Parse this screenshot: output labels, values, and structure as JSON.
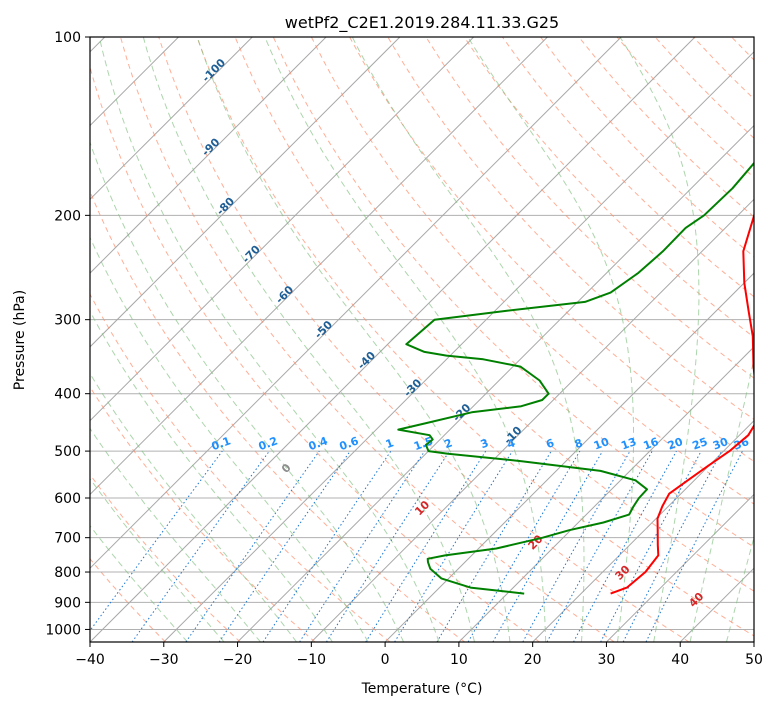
{
  "chart_data": {
    "type": "skew-t",
    "title": "wetPf2_C2E1.2019.284.11.33.G25",
    "xlabel": "Temperature (°C)",
    "ylabel": "Pressure (hPa)",
    "xlim": [
      -40,
      50
    ],
    "ylim": [
      1050,
      100
    ],
    "y_scale": "log",
    "x_ticks": [
      -40,
      -30,
      -20,
      -10,
      0,
      10,
      20,
      30,
      40,
      50
    ],
    "y_ticks": [
      100,
      200,
      300,
      400,
      500,
      600,
      700,
      800,
      900,
      1000
    ],
    "x_tick_labels": [
      "−40",
      "−30",
      "−20",
      "−10",
      "0",
      "10",
      "20",
      "30",
      "40",
      "50"
    ],
    "y_tick_labels": [
      "100",
      "200",
      "300",
      "400",
      "500",
      "600",
      "700",
      "800",
      "900",
      "1000"
    ],
    "grid": true,
    "series": [
      {
        "role": "temperature",
        "color": "#ff0000",
        "points": [
          [
            870,
            24
          ],
          [
            850,
            25.4
          ],
          [
            800,
            25.8
          ],
          [
            750,
            25.3
          ],
          [
            720,
            23.8
          ],
          [
            680,
            21.8
          ],
          [
            650,
            20.2
          ],
          [
            620,
            19.2
          ],
          [
            590,
            18.4
          ],
          [
            560,
            19.1
          ],
          [
            530,
            19.9
          ],
          [
            500,
            20.8
          ],
          [
            470,
            21.2
          ],
          [
            450,
            20.6
          ],
          [
            430,
            19.2
          ],
          [
            400,
            16.7
          ],
          [
            360,
            12.6
          ],
          [
            320,
            8.4
          ],
          [
            290,
            4.4
          ],
          [
            260,
            0.0
          ],
          [
            230,
            -4.4
          ],
          [
            200,
            -7.8
          ],
          [
            180,
            -10.8
          ],
          [
            160,
            -13.3
          ],
          [
            140,
            -15.4
          ],
          [
            130,
            -17.0
          ],
          [
            120,
            -19.4
          ],
          [
            112,
            -19.6
          ],
          [
            105,
            -19.3
          ],
          [
            100,
            -19.5
          ]
        ]
      },
      {
        "role": "dewpoint",
        "color": "#008000",
        "points": [
          [
            870,
            12.3
          ],
          [
            850,
            4.2
          ],
          [
            820,
            -1.0
          ],
          [
            790,
            -3.8
          ],
          [
            770,
            -5.0
          ],
          [
            760,
            -5.5
          ],
          [
            750,
            -3.6
          ],
          [
            730,
            2.4
          ],
          [
            700,
            7.2
          ],
          [
            680,
            9.8
          ],
          [
            660,
            13.4
          ],
          [
            640,
            15.8
          ],
          [
            620,
            15.3
          ],
          [
            600,
            14.9
          ],
          [
            580,
            14.8
          ],
          [
            560,
            12.0
          ],
          [
            540,
            6.0
          ],
          [
            520,
            -6.0
          ],
          [
            505,
            -17.0
          ],
          [
            500,
            -20.0
          ],
          [
            488,
            -21.2
          ],
          [
            478,
            -21.0
          ],
          [
            470,
            -22.0
          ],
          [
            460,
            -27.0
          ],
          [
            450,
            -24.5
          ],
          [
            430,
            -19.4
          ],
          [
            420,
            -13.5
          ],
          [
            410,
            -11.5
          ],
          [
            400,
            -11.5
          ],
          [
            380,
            -14.5
          ],
          [
            360,
            -19.0
          ],
          [
            350,
            -25.0
          ],
          [
            345,
            -30.5
          ],
          [
            340,
            -34.0
          ],
          [
            330,
            -37.5
          ],
          [
            300,
            -37.0
          ],
          [
            290,
            -28.5
          ],
          [
            280,
            -19.0
          ],
          [
            270,
            -16.8
          ],
          [
            250,
            -15.7
          ],
          [
            230,
            -15.3
          ],
          [
            210,
            -15.4
          ],
          [
            200,
            -14.6
          ],
          [
            180,
            -14.4
          ],
          [
            160,
            -15.0
          ],
          [
            140,
            -17.5
          ],
          [
            125,
            -20.2
          ],
          [
            115,
            -19.8
          ],
          [
            105,
            -17.0
          ],
          [
            100,
            -16.3
          ]
        ]
      }
    ],
    "dry_adiabats": [
      -100,
      -90,
      -80,
      -70,
      -60,
      -50,
      -40,
      -30,
      -20,
      -10
    ],
    "moist_adiabats": [
      0,
      10,
      20,
      30,
      40
    ],
    "mixing_ratio_lines": [
      "0.1",
      "0.2",
      "0.4",
      "0.6",
      "1",
      "1.5",
      "2",
      "3",
      "4",
      "6",
      "8",
      "10",
      "13",
      "16",
      "20",
      "25",
      "30",
      "36"
    ],
    "colors": {
      "temperature": "#ff0000",
      "dewpoint": "#008000",
      "dry_adiabat": "#ff8c69",
      "moist_adiabat": "#7fbf7f",
      "mixing_ratio": "#1e78d0",
      "isotherm": "#808080",
      "dry_label": "#1f5f96",
      "moist_label": "#d62728",
      "moist_zero_label": "#8c8c8c",
      "mixing_label": "#1e90ff"
    }
  }
}
